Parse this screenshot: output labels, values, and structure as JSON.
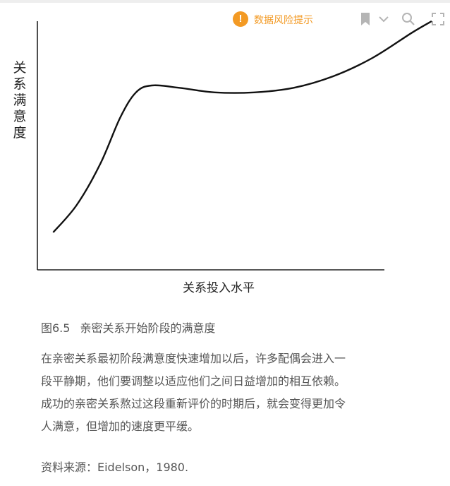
{
  "toolbar": {
    "warning_label": "数据风险提示",
    "icons": [
      "warning-icon",
      "bookmark-icon",
      "chevron-down-icon",
      "search-icon",
      "fullscreen-icon"
    ],
    "warning_color": "#f39a24",
    "icon_color": "#b5b5b5"
  },
  "chart_data": {
    "type": "line",
    "title": "",
    "xlabel": "关系投入水平",
    "ylabel": "关系满意度",
    "grid": false,
    "legend": "none",
    "x_ticks": [],
    "y_ticks": [],
    "xlim": [
      0,
      100
    ],
    "ylim": [
      0,
      100
    ],
    "series": [
      {
        "values": [
          {
            "x": 4,
            "y": 8
          },
          {
            "x": 10,
            "y": 20
          },
          {
            "x": 16,
            "y": 38
          },
          {
            "x": 21,
            "y": 58
          },
          {
            "x": 25,
            "y": 69
          },
          {
            "x": 29,
            "y": 72
          },
          {
            "x": 36,
            "y": 71
          },
          {
            "x": 45,
            "y": 69
          },
          {
            "x": 55,
            "y": 69
          },
          {
            "x": 65,
            "y": 71
          },
          {
            "x": 75,
            "y": 76
          },
          {
            "x": 85,
            "y": 84
          },
          {
            "x": 95,
            "y": 95
          },
          {
            "x": 100,
            "y": 100
          }
        ]
      }
    ]
  },
  "caption": {
    "number": "图6.5",
    "text": "亲密关系开始阶段的满意度"
  },
  "paragraph": {
    "lines": [
      "在亲密关系最初阶段满意度快速增加以后，许多配偶会进入一",
      "段平静期，他们要调整以适应他们之间日益增加的相互依赖。",
      "成功的亲密关系熬过这段重新评价的时期后，就会变得更加令",
      "人满意，但增加的速度更平缓。"
    ]
  },
  "source": "资料来源：Eidelson，1980."
}
